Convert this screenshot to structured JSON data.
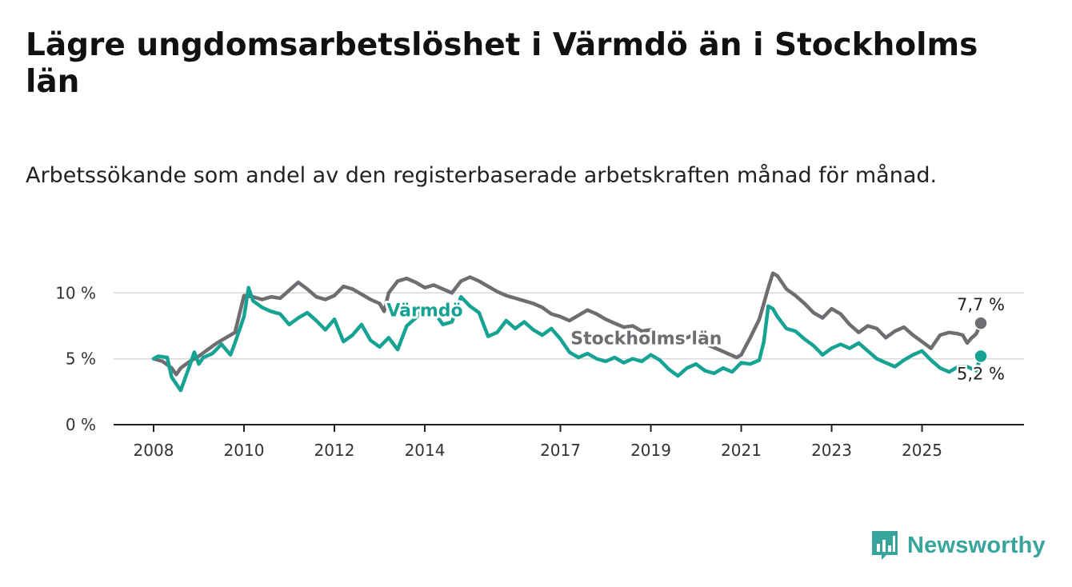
{
  "title": "Lägre ungdomsarbetslöshet i Värmdö än i Stockholms län",
  "subtitle": "Arbetssökande som andel av den registerbaserade arbetskraften månad för månad.",
  "brand": "Newsworthy",
  "colors": {
    "varmdo": "#16a393",
    "stockholm": "#6e6d72",
    "grid": "#d9d9d9",
    "axis": "#222222",
    "brand": "#37a59b"
  },
  "chart_data": {
    "type": "line",
    "xlim": [
      2008,
      2026.3
    ],
    "ylim": [
      0,
      11.9
    ],
    "grid": "horizontal",
    "y_ticks": [
      {
        "value": 0,
        "label": "0 %"
      },
      {
        "value": 5,
        "label": "5 %"
      },
      {
        "value": 10,
        "label": "10 %"
      }
    ],
    "x_ticks": [
      {
        "value": 2008,
        "label": "2008"
      },
      {
        "value": 2010,
        "label": "2010"
      },
      {
        "value": 2012,
        "label": "2012"
      },
      {
        "value": 2014,
        "label": "2014"
      },
      {
        "value": 2017,
        "label": "2017"
      },
      {
        "value": 2019,
        "label": "2019"
      },
      {
        "value": 2021,
        "label": "2021"
      },
      {
        "value": 2023,
        "label": "2023"
      },
      {
        "value": 2025,
        "label": "2025"
      }
    ],
    "series": [
      {
        "name": "Stockholms län",
        "color": "#6e6d72",
        "label_position": [
          2018.9,
          6.6
        ],
        "end_label": "7,7 %",
        "points": [
          [
            2008.0,
            5.0
          ],
          [
            2008.2,
            4.8
          ],
          [
            2008.4,
            4.3
          ],
          [
            2008.5,
            3.8
          ],
          [
            2008.6,
            4.3
          ],
          [
            2008.8,
            4.8
          ],
          [
            2009.0,
            5.2
          ],
          [
            2009.2,
            5.7
          ],
          [
            2009.4,
            6.2
          ],
          [
            2009.6,
            6.6
          ],
          [
            2009.8,
            7.0
          ],
          [
            2010.0,
            9.8
          ],
          [
            2010.2,
            9.7
          ],
          [
            2010.4,
            9.5
          ],
          [
            2010.6,
            9.7
          ],
          [
            2010.8,
            9.6
          ],
          [
            2011.0,
            10.2
          ],
          [
            2011.2,
            10.8
          ],
          [
            2011.4,
            10.3
          ],
          [
            2011.6,
            9.7
          ],
          [
            2011.8,
            9.5
          ],
          [
            2012.0,
            9.8
          ],
          [
            2012.2,
            10.5
          ],
          [
            2012.4,
            10.3
          ],
          [
            2012.6,
            9.9
          ],
          [
            2012.8,
            9.5
          ],
          [
            2013.0,
            9.2
          ],
          [
            2013.1,
            8.6
          ],
          [
            2013.2,
            10.0
          ],
          [
            2013.4,
            10.9
          ],
          [
            2013.6,
            11.1
          ],
          [
            2013.8,
            10.8
          ],
          [
            2014.0,
            10.4
          ],
          [
            2014.2,
            10.6
          ],
          [
            2014.4,
            10.3
          ],
          [
            2014.6,
            10.0
          ],
          [
            2014.8,
            10.9
          ],
          [
            2015.0,
            11.2
          ],
          [
            2015.2,
            10.9
          ],
          [
            2015.4,
            10.5
          ],
          [
            2015.6,
            10.1
          ],
          [
            2015.8,
            9.8
          ],
          [
            2016.0,
            9.6
          ],
          [
            2016.2,
            9.4
          ],
          [
            2016.4,
            9.2
          ],
          [
            2016.6,
            8.9
          ],
          [
            2016.8,
            8.4
          ],
          [
            2017.0,
            8.2
          ],
          [
            2017.2,
            7.9
          ],
          [
            2017.4,
            8.3
          ],
          [
            2017.6,
            8.7
          ],
          [
            2017.8,
            8.4
          ],
          [
            2018.0,
            8.0
          ],
          [
            2018.2,
            7.7
          ],
          [
            2018.4,
            7.4
          ],
          [
            2018.6,
            7.5
          ],
          [
            2018.8,
            7.1
          ],
          [
            2019.0,
            7.2
          ],
          [
            2019.2,
            6.8
          ],
          [
            2019.4,
            6.5
          ],
          [
            2019.6,
            6.3
          ],
          [
            2019.8,
            6.6
          ],
          [
            2020.0,
            6.9
          ],
          [
            2020.1,
            6.2
          ],
          [
            2020.3,
            6.0
          ],
          [
            2020.5,
            5.7
          ],
          [
            2020.7,
            5.4
          ],
          [
            2020.9,
            5.1
          ],
          [
            2021.0,
            5.3
          ],
          [
            2021.2,
            6.6
          ],
          [
            2021.4,
            8.0
          ],
          [
            2021.5,
            9.2
          ],
          [
            2021.6,
            10.4
          ],
          [
            2021.7,
            11.5
          ],
          [
            2021.8,
            11.3
          ],
          [
            2022.0,
            10.3
          ],
          [
            2022.2,
            9.8
          ],
          [
            2022.4,
            9.2
          ],
          [
            2022.6,
            8.5
          ],
          [
            2022.8,
            8.1
          ],
          [
            2023.0,
            8.8
          ],
          [
            2023.2,
            8.4
          ],
          [
            2023.4,
            7.6
          ],
          [
            2023.6,
            7.0
          ],
          [
            2023.8,
            7.5
          ],
          [
            2024.0,
            7.3
          ],
          [
            2024.2,
            6.6
          ],
          [
            2024.4,
            7.1
          ],
          [
            2024.6,
            7.4
          ],
          [
            2024.8,
            6.8
          ],
          [
            2025.0,
            6.3
          ],
          [
            2025.2,
            5.8
          ],
          [
            2025.4,
            6.8
          ],
          [
            2025.6,
            7.0
          ],
          [
            2025.8,
            6.9
          ],
          [
            2025.9,
            6.8
          ],
          [
            2026.0,
            6.2
          ],
          [
            2026.1,
            6.6
          ],
          [
            2026.2,
            6.9
          ],
          [
            2026.3,
            7.7
          ]
        ]
      },
      {
        "name": "Värmdö",
        "color": "#16a393",
        "label_position": [
          2014.0,
          8.7
        ],
        "end_label": "5,2 %",
        "points": [
          [
            2008.0,
            5.0
          ],
          [
            2008.1,
            5.2
          ],
          [
            2008.3,
            5.1
          ],
          [
            2008.4,
            3.6
          ],
          [
            2008.6,
            2.6
          ],
          [
            2008.8,
            4.5
          ],
          [
            2008.9,
            5.5
          ],
          [
            2009.0,
            4.6
          ],
          [
            2009.1,
            5.1
          ],
          [
            2009.3,
            5.4
          ],
          [
            2009.5,
            6.1
          ],
          [
            2009.7,
            5.3
          ],
          [
            2009.8,
            6.2
          ],
          [
            2010.0,
            8.2
          ],
          [
            2010.1,
            10.4
          ],
          [
            2010.2,
            9.4
          ],
          [
            2010.4,
            8.9
          ],
          [
            2010.6,
            8.6
          ],
          [
            2010.8,
            8.4
          ],
          [
            2011.0,
            7.6
          ],
          [
            2011.2,
            8.1
          ],
          [
            2011.4,
            8.5
          ],
          [
            2011.6,
            7.9
          ],
          [
            2011.8,
            7.2
          ],
          [
            2012.0,
            8.0
          ],
          [
            2012.2,
            6.3
          ],
          [
            2012.4,
            6.8
          ],
          [
            2012.6,
            7.6
          ],
          [
            2012.8,
            6.4
          ],
          [
            2013.0,
            5.9
          ],
          [
            2013.2,
            6.6
          ],
          [
            2013.4,
            5.7
          ],
          [
            2013.6,
            7.5
          ],
          [
            2013.8,
            8.1
          ],
          [
            2014.0,
            8.9
          ],
          [
            2014.2,
            8.6
          ],
          [
            2014.4,
            7.6
          ],
          [
            2014.6,
            7.8
          ],
          [
            2014.8,
            9.7
          ],
          [
            2015.0,
            9.0
          ],
          [
            2015.2,
            8.5
          ],
          [
            2015.4,
            6.7
          ],
          [
            2015.6,
            7.0
          ],
          [
            2015.8,
            7.9
          ],
          [
            2016.0,
            7.3
          ],
          [
            2016.2,
            7.8
          ],
          [
            2016.4,
            7.2
          ],
          [
            2016.6,
            6.8
          ],
          [
            2016.8,
            7.3
          ],
          [
            2017.0,
            6.5
          ],
          [
            2017.2,
            5.5
          ],
          [
            2017.4,
            5.1
          ],
          [
            2017.6,
            5.4
          ],
          [
            2017.8,
            5.0
          ],
          [
            2018.0,
            4.8
          ],
          [
            2018.2,
            5.1
          ],
          [
            2018.4,
            4.7
          ],
          [
            2018.6,
            5.0
          ],
          [
            2018.8,
            4.8
          ],
          [
            2019.0,
            5.3
          ],
          [
            2019.2,
            4.9
          ],
          [
            2019.4,
            4.2
          ],
          [
            2019.6,
            3.7
          ],
          [
            2019.8,
            4.3
          ],
          [
            2020.0,
            4.6
          ],
          [
            2020.2,
            4.1
          ],
          [
            2020.4,
            3.9
          ],
          [
            2020.6,
            4.3
          ],
          [
            2020.8,
            4.0
          ],
          [
            2021.0,
            4.7
          ],
          [
            2021.2,
            4.6
          ],
          [
            2021.4,
            4.9
          ],
          [
            2021.5,
            6.3
          ],
          [
            2021.6,
            9.0
          ],
          [
            2021.7,
            8.8
          ],
          [
            2021.8,
            8.2
          ],
          [
            2022.0,
            7.3
          ],
          [
            2022.2,
            7.1
          ],
          [
            2022.4,
            6.5
          ],
          [
            2022.6,
            6.0
          ],
          [
            2022.8,
            5.3
          ],
          [
            2023.0,
            5.8
          ],
          [
            2023.2,
            6.1
          ],
          [
            2023.4,
            5.8
          ],
          [
            2023.6,
            6.2
          ],
          [
            2023.8,
            5.6
          ],
          [
            2024.0,
            5.0
          ],
          [
            2024.2,
            4.7
          ],
          [
            2024.4,
            4.4
          ],
          [
            2024.6,
            4.9
          ],
          [
            2024.8,
            5.3
          ],
          [
            2025.0,
            5.6
          ],
          [
            2025.2,
            4.9
          ],
          [
            2025.4,
            4.3
          ],
          [
            2025.6,
            4.0
          ],
          [
            2025.8,
            4.4
          ],
          [
            2026.0,
            4.4
          ],
          [
            2026.2,
            4.1
          ],
          [
            2026.3,
            5.2
          ]
        ]
      }
    ]
  }
}
